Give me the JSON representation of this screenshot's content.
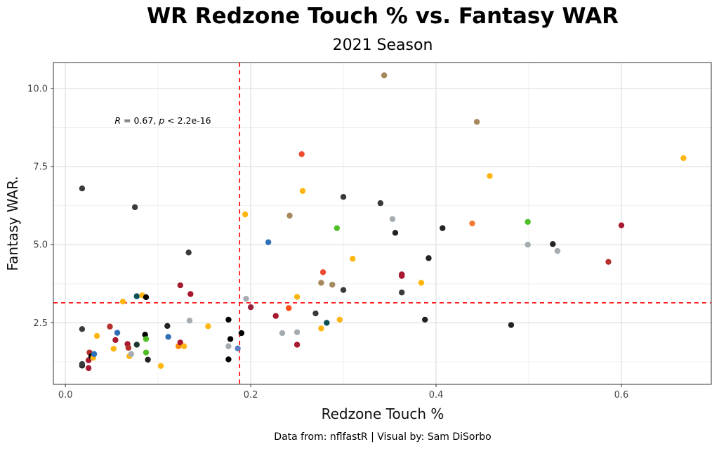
{
  "chart_data": {
    "type": "scatter",
    "title": "WR Redzone Touch % vs. Fantasy WAR",
    "subtitle": "2021 Season",
    "xlabel": "Redzone Touch %",
    "ylabel": "Fantasy WAR.",
    "caption": "Data from: nflfastR | Visual by: Sam DiSorbo",
    "annotation": {
      "r_label": "R",
      "r_value": " = 0.67, ",
      "p_label": "p",
      "p_value": " < 2.2e-16"
    },
    "xlim": [
      -0.013,
      0.697
    ],
    "ylim": [
      0.53,
      10.83
    ],
    "x_ticks": [
      0.0,
      0.2,
      0.4,
      0.6
    ],
    "x_tick_labels": [
      "0.0",
      "0.2",
      "0.4",
      "0.6"
    ],
    "y_ticks": [
      2.5,
      5.0,
      7.5,
      10.0
    ],
    "y_tick_labels": [
      "2.5",
      "5.0",
      "7.5",
      "10.0"
    ],
    "vline_x": 0.188,
    "hline_y": 3.14,
    "points": [
      {
        "x": 0.018,
        "y": 6.8,
        "c": "#3a3a3a"
      },
      {
        "x": 0.075,
        "y": 6.2,
        "c": "#3a3a3a"
      },
      {
        "x": 0.018,
        "y": 2.3,
        "c": "#3a3a3a"
      },
      {
        "x": 0.018,
        "y": 1.13,
        "c": "#222222"
      },
      {
        "x": 0.018,
        "y": 1.18,
        "c": "#3a3a3a"
      },
      {
        "x": 0.025,
        "y": 1.05,
        "c": "#a71930"
      },
      {
        "x": 0.025,
        "y": 1.3,
        "c": "#a71930"
      },
      {
        "x": 0.026,
        "y": 1.55,
        "c": "#b3302c"
      },
      {
        "x": 0.028,
        "y": 1.43,
        "c": "#000000"
      },
      {
        "x": 0.03,
        "y": 1.38,
        "c": "#ffb612"
      },
      {
        "x": 0.031,
        "y": 1.5,
        "c": "#2f6fb5"
      },
      {
        "x": 0.034,
        "y": 2.08,
        "c": "#ffb612"
      },
      {
        "x": 0.048,
        "y": 2.38,
        "c": "#b3302c"
      },
      {
        "x": 0.052,
        "y": 1.67,
        "c": "#ffb612"
      },
      {
        "x": 0.054,
        "y": 1.95,
        "c": "#a71930"
      },
      {
        "x": 0.056,
        "y": 2.18,
        "c": "#2f6fb5"
      },
      {
        "x": 0.062,
        "y": 3.18,
        "c": "#ffb612"
      },
      {
        "x": 0.067,
        "y": 1.82,
        "c": "#a71930"
      },
      {
        "x": 0.068,
        "y": 1.7,
        "c": "#b3302c"
      },
      {
        "x": 0.069,
        "y": 1.43,
        "c": "#ffb612"
      },
      {
        "x": 0.071,
        "y": 1.5,
        "c": "#a5acaf"
      },
      {
        "x": 0.077,
        "y": 3.35,
        "c": "#0b5055"
      },
      {
        "x": 0.077,
        "y": 1.8,
        "c": "#203731"
      },
      {
        "x": 0.083,
        "y": 3.38,
        "c": "#ffb612"
      },
      {
        "x": 0.086,
        "y": 2.12,
        "c": "#000000"
      },
      {
        "x": 0.087,
        "y": 3.32,
        "c": "#000000"
      },
      {
        "x": 0.087,
        "y": 1.55,
        "c": "#4fbf26"
      },
      {
        "x": 0.087,
        "y": 1.98,
        "c": "#4fbf26"
      },
      {
        "x": 0.089,
        "y": 1.32,
        "c": "#222222"
      },
      {
        "x": 0.103,
        "y": 1.12,
        "c": "#ffb612"
      },
      {
        "x": 0.11,
        "y": 2.4,
        "c": "#222222"
      },
      {
        "x": 0.111,
        "y": 2.05,
        "c": "#2f6fb5"
      },
      {
        "x": 0.122,
        "y": 1.75,
        "c": "#fb8c00"
      },
      {
        "x": 0.124,
        "y": 3.7,
        "c": "#a71930"
      },
      {
        "x": 0.124,
        "y": 1.87,
        "c": "#a71930"
      },
      {
        "x": 0.128,
        "y": 1.75,
        "c": "#ffb612"
      },
      {
        "x": 0.133,
        "y": 4.75,
        "c": "#3a3a3a"
      },
      {
        "x": 0.134,
        "y": 2.57,
        "c": "#a5acaf"
      },
      {
        "x": 0.135,
        "y": 3.42,
        "c": "#a71930"
      },
      {
        "x": 0.154,
        "y": 2.39,
        "c": "#ffb612"
      },
      {
        "x": 0.176,
        "y": 2.6,
        "c": "#000000"
      },
      {
        "x": 0.176,
        "y": 1.75,
        "c": "#a5acaf"
      },
      {
        "x": 0.176,
        "y": 1.33,
        "c": "#000000"
      },
      {
        "x": 0.178,
        "y": 1.98,
        "c": "#000000"
      },
      {
        "x": 0.186,
        "y": 1.68,
        "c": "#5b7fc2"
      },
      {
        "x": 0.19,
        "y": 2.17,
        "c": "#000000"
      },
      {
        "x": 0.194,
        "y": 5.97,
        "c": "#ffb612"
      },
      {
        "x": 0.195,
        "y": 3.27,
        "c": "#a5acaf"
      },
      {
        "x": 0.2,
        "y": 3.0,
        "c": "#97233f"
      },
      {
        "x": 0.219,
        "y": 5.08,
        "c": "#2f6fb5"
      },
      {
        "x": 0.227,
        "y": 2.72,
        "c": "#a71930"
      },
      {
        "x": 0.234,
        "y": 2.17,
        "c": "#a5acaf"
      },
      {
        "x": 0.241,
        "y": 2.97,
        "c": "#fb4f14"
      },
      {
        "x": 0.242,
        "y": 5.93,
        "c": "#a5885c"
      },
      {
        "x": 0.25,
        "y": 2.2,
        "c": "#a5acaf"
      },
      {
        "x": 0.25,
        "y": 1.8,
        "c": "#a71930"
      },
      {
        "x": 0.25,
        "y": 3.33,
        "c": "#ffb612"
      },
      {
        "x": 0.255,
        "y": 7.9,
        "c": "#f04a30"
      },
      {
        "x": 0.256,
        "y": 6.72,
        "c": "#ffb612"
      },
      {
        "x": 0.27,
        "y": 2.8,
        "c": "#3a3a3a"
      },
      {
        "x": 0.276,
        "y": 3.78,
        "c": "#a5885c"
      },
      {
        "x": 0.276,
        "y": 2.32,
        "c": "#ffb612"
      },
      {
        "x": 0.278,
        "y": 4.12,
        "c": "#f04a30"
      },
      {
        "x": 0.282,
        "y": 2.5,
        "c": "#0b5055"
      },
      {
        "x": 0.288,
        "y": 3.72,
        "c": "#a5885c"
      },
      {
        "x": 0.293,
        "y": 5.53,
        "c": "#4fbf26"
      },
      {
        "x": 0.3,
        "y": 3.55,
        "c": "#3a3a3a"
      },
      {
        "x": 0.3,
        "y": 6.53,
        "c": "#3a3a3a"
      },
      {
        "x": 0.31,
        "y": 4.55,
        "c": "#ffb612"
      },
      {
        "x": 0.296,
        "y": 2.6,
        "c": "#ffb612"
      },
      {
        "x": 0.34,
        "y": 6.33,
        "c": "#3a3a3a"
      },
      {
        "x": 0.344,
        "y": 10.42,
        "c": "#a5885c"
      },
      {
        "x": 0.353,
        "y": 5.82,
        "c": "#a5acaf"
      },
      {
        "x": 0.356,
        "y": 5.38,
        "c": "#222222"
      },
      {
        "x": 0.363,
        "y": 4.05,
        "c": "#a71930"
      },
      {
        "x": 0.363,
        "y": 4.0,
        "c": "#a71930"
      },
      {
        "x": 0.363,
        "y": 3.47,
        "c": "#3a3a3a"
      },
      {
        "x": 0.384,
        "y": 3.78,
        "c": "#ffb612"
      },
      {
        "x": 0.388,
        "y": 2.6,
        "c": "#222222"
      },
      {
        "x": 0.392,
        "y": 4.57,
        "c": "#222222"
      },
      {
        "x": 0.407,
        "y": 5.53,
        "c": "#222222"
      },
      {
        "x": 0.439,
        "y": 5.68,
        "c": "#f07c38"
      },
      {
        "x": 0.444,
        "y": 8.93,
        "c": "#a5885c"
      },
      {
        "x": 0.458,
        "y": 7.2,
        "c": "#ffb612"
      },
      {
        "x": 0.481,
        "y": 2.43,
        "c": "#222222"
      },
      {
        "x": 0.499,
        "y": 5.73,
        "c": "#4fbf26"
      },
      {
        "x": 0.499,
        "y": 5.0,
        "c": "#a5acaf"
      },
      {
        "x": 0.526,
        "y": 5.02,
        "c": "#222222"
      },
      {
        "x": 0.531,
        "y": 4.8,
        "c": "#a5acaf"
      },
      {
        "x": 0.586,
        "y": 4.45,
        "c": "#b3302c"
      },
      {
        "x": 0.6,
        "y": 5.62,
        "c": "#a71930"
      },
      {
        "x": 0.667,
        "y": 7.77,
        "c": "#ffb612"
      }
    ]
  }
}
